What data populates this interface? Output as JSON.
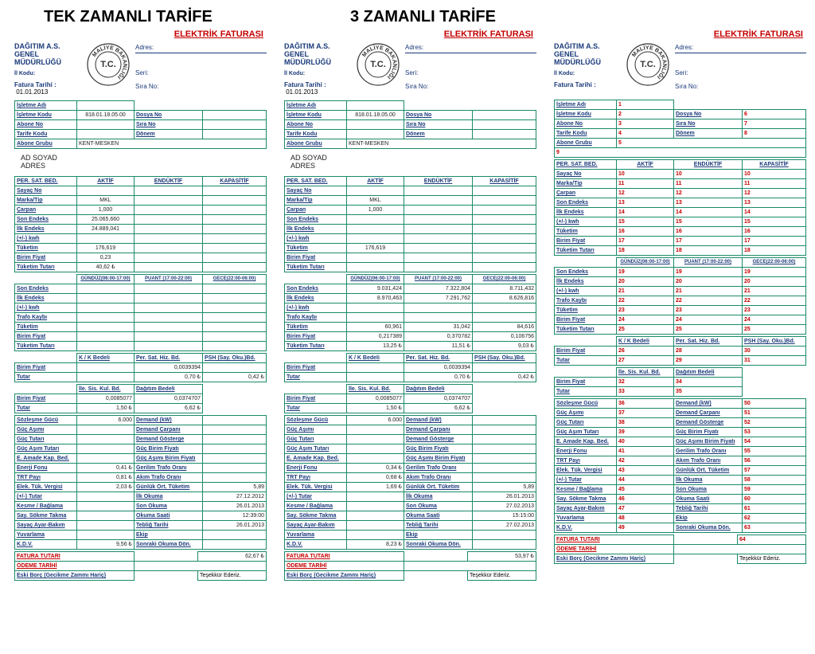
{
  "titles": {
    "left": "TEK ZAMANLI TARİFE",
    "mid": "3 ZAMANLI TARİFE"
  },
  "header": "ELEKTRİK FATURASI",
  "stamp": {
    "outer": "MALİYE BAKANLIĞI",
    "inner": "T.C."
  },
  "company": {
    "l1": "DAĞITIM A.S.",
    "l2": "GENEL MÜDÜRLÜĞÜ",
    "il": "İl Kodu:",
    "ft": "Fatura Tarihi :"
  },
  "toprightLabels": {
    "adres": "Adres:",
    "seri": "Seri:",
    "sira": "Sıra No:"
  },
  "block1Labels": {
    "isletmeAdi": "İşletme Adı",
    "isletmeKodu": "İşletme Kodu",
    "aboneNo": "Abone No",
    "tarifeKodu": "Tarife Kodu",
    "aboneGrubu": "Abone Grubu",
    "dosyaNo": "Dosya No",
    "siraNo": "Sıra No",
    "donem": "Dönem"
  },
  "persat": {
    "head": "PER. SAT. BED.",
    "aktif": "AKTİF",
    "enduktif": "ENDÜKTİF",
    "kapasitif": "KAPASİTİF",
    "rows": [
      "Sayaç No",
      "Marka/Tip",
      "Çarpan",
      "Son Endeks",
      "İlk Endeks",
      "(+/-) kwh",
      "Tüketim",
      "Birim Fiyat",
      "Tüketim Tutarı"
    ]
  },
  "zhead": {
    "g": "GÜNDÜZ(06:00-17:00)",
    "p": "PUANT (17:00-22:00)",
    "ge": "GECE(22:00-06:00)"
  },
  "zrows": [
    "Son Endeks",
    "İlk Endeks",
    "(+/-) kwh",
    "Trafo Kaybı",
    "Tüketim",
    "Birim Fiyat",
    "Tüketim Tutarı"
  ],
  "mid1": {
    "kk": "K / K Bedeli",
    "persat": "Per. Sat. Hiz. Bd.",
    "psh": "PSH (Say. Oku.)Bd.",
    "bf": "Birim Fiyat",
    "tutar": "Tutar"
  },
  "mid2": {
    "ile": "İle. Sis. Kul. Bd.",
    "dag": "Dağıtım Bedeli",
    "bf": "Birim Fiyat",
    "tutar": "Tutar"
  },
  "low": {
    "left": [
      "Sözleşme Gücü",
      "Güç Aşımı",
      "Güç Tutarı",
      "Güç Aşım Tutarı",
      "E. Amade Kap. Bed.",
      "Enerji Fonu",
      "TRT Payı",
      "Elek. Tük. Vergisi",
      "(+/-) Tutar",
      "Kesme / Bağlama",
      "Say. Sökme Takma",
      "Sayaç Ayar-Bakım",
      "Yuvarlama",
      "K.D.V."
    ],
    "right": [
      "Demand (kW)",
      "Demand Çarpanı",
      "Demand Gösterge",
      "Güç Birim Fiyatı",
      "Güç Aşımı Birim Fiyatı",
      "Gerilim Trafo Oranı",
      "Akım Trafo Oranı",
      "Günlük Ort. Tüketim",
      "İlk Okuma",
      "Son Okuma",
      "Okuma Saati",
      "Tebliğ Tarihi",
      "Ekip",
      "Sonraki Okuma Dön."
    ]
  },
  "bottom": {
    "ft": "FATURA TUTARI",
    "ot": "ÖDEME TARİHİ",
    "eski": "Eski Borç (Gecikme Zammı Hariç)",
    "tesekkur": "Teşekkür Ederiz."
  },
  "name": "AD SOYAD",
  "adres": "ADRES",
  "bills": [
    {
      "faturaTarihi": "01.01.2013",
      "isletmeKodu": "818.01.18.05.00",
      "aboneGrubu": "KENT-MESKEN",
      "aktif": {
        "marka": "MKL",
        "carpan": "1,000",
        "son": "25.065,660",
        "ilk": "24.889,041",
        "tuketim": "176,619",
        "bf": "0,23",
        "tt": "40,62 ₺"
      },
      "z": [
        [
          "",
          "",
          ""
        ],
        [
          "",
          "",
          ""
        ],
        [
          "",
          "",
          ""
        ],
        [
          "",
          "",
          ""
        ],
        [
          "",
          "",
          ""
        ],
        [
          "",
          "",
          ""
        ],
        [
          "",
          "",
          ""
        ]
      ],
      "m1": {
        "persatbf": "0,0039394",
        "tutar_persat": "0,70 ₺",
        "tutar_psh": "0,42 ₺"
      },
      "m2": {
        "bf_ile": "0,0085077",
        "bf_dag": "0,0374707",
        "t_ile": "1,50 ₺",
        "t_dag": "6,62 ₺"
      },
      "lvL": [
        "6.000",
        "",
        "",
        "",
        "",
        "0,41 ₺",
        "0,81 ₺",
        "2,03 ₺",
        "",
        "",
        "",
        "",
        "",
        "9,56 ₺"
      ],
      "lvR": [
        "",
        "",
        "",
        "",
        "",
        "",
        "",
        "5,89",
        "27.12.2012",
        "26.01.2013",
        "12:39:00",
        "26.01.2013",
        "",
        ""
      ],
      "ft": "62,67 ₺"
    },
    {
      "faturaTarihi": "01.01.2013",
      "isletmeKodu": "818.01.18.05.00",
      "aboneGrubu": "KENT-MESKEN",
      "aktif": {
        "marka": "MKL",
        "carpan": "1,000",
        "son": "",
        "ilk": "",
        "tuketim": "176,619",
        "bf": "",
        "tt": ""
      },
      "z": [
        [
          "9.031,424",
          "7.322,804",
          "8.711,432"
        ],
        [
          "8.970,463",
          "7.291,762",
          "8.626,816"
        ],
        [
          "",
          "",
          ""
        ],
        [
          "",
          "",
          ""
        ],
        [
          "60,961",
          "31,042",
          "84,616"
        ],
        [
          "0,217389",
          "0,370782",
          "0,106756"
        ],
        [
          "13,25 ₺",
          "11,51 ₺",
          "9,03 ₺"
        ]
      ],
      "m1": {
        "persatbf": "0,0039394",
        "tutar_persat": "0,70 ₺",
        "tutar_psh": "0,42 ₺"
      },
      "m2": {
        "bf_ile": "0,0085077",
        "bf_dag": "0,0374707",
        "t_ile": "1,50 ₺",
        "t_dag": "6,62 ₺"
      },
      "lvL": [
        "6.000",
        "",
        "",
        "",
        "",
        "0,34 ₺",
        "0,68 ₺",
        "1,69 ₺",
        "",
        "",
        "",
        "",
        "",
        "8,23 ₺"
      ],
      "lvR": [
        "",
        "",
        "",
        "",
        "",
        "",
        "",
        "5,89",
        "26.01.2013",
        "27.02.2013",
        "15:15:00",
        "27.02.2013",
        "",
        ""
      ],
      "ft": "53,97 ₺"
    },
    {
      "faturaTarihi": "",
      "isletmeAdi": "1",
      "isletmeKodu": "2",
      "aboneNo": "3",
      "tarifeKodu": "4",
      "aboneGrubu": "5",
      "dosyaNo": "6",
      "siraNo": "7",
      "donem": "8",
      "extra": "9",
      "aktif": {
        "rows": [
          "10",
          "11",
          "12",
          "13",
          "14",
          "15",
          "16",
          "17",
          "18"
        ]
      },
      "z": [
        [
          "19",
          "19",
          "19"
        ],
        [
          "20",
          "20",
          "20"
        ],
        [
          "21",
          "21",
          "21"
        ],
        [
          "22",
          "22",
          "22"
        ],
        [
          "23",
          "23",
          "23"
        ],
        [
          "24",
          "24",
          "24"
        ],
        [
          "25",
          "25",
          "25"
        ]
      ],
      "m1": {
        "kk": "26",
        "persatbf": "28",
        "psh": "30",
        "tutar_kk": "27",
        "tutar_persat": "29",
        "tutar_psh": "31"
      },
      "m2": {
        "bf_ile": "32",
        "bf_dag": "34",
        "t_ile": "33",
        "t_dag": "35"
      },
      "lvL": [
        "36",
        "37",
        "38",
        "39",
        "40",
        "41",
        "42",
        "43",
        "44",
        "45",
        "46",
        "47",
        "48",
        "49"
      ],
      "lvR": [
        "50",
        "51",
        "52",
        "53",
        "54",
        "55",
        "56",
        "57",
        "58",
        "59",
        "60",
        "61",
        "62",
        "63"
      ],
      "ft": "64",
      "redNums": true
    }
  ]
}
